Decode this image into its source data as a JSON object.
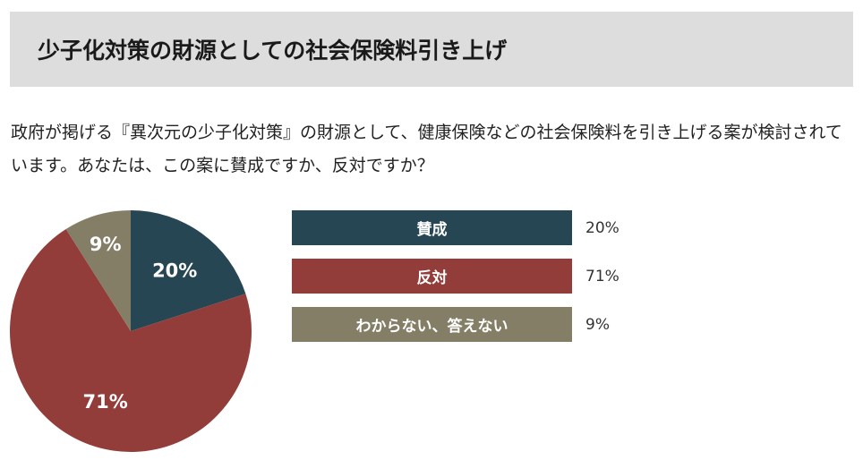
{
  "header": {
    "title": "少子化対策の財源としての社会保険料引き上げ"
  },
  "question": {
    "text": "政府が掲げる『異次元の少子化対策』の財源として、健康保険などの社会保険料を引き上げる案が検討されています。あなたは、この案に賛成ですか、反対ですか？"
  },
  "chart_data": {
    "type": "pie",
    "slices": [
      {
        "label": "賛成",
        "value": 20,
        "display": "20%",
        "color": "#264653"
      },
      {
        "label": "反対",
        "value": 71,
        "display": "71%",
        "color": "#933d3a"
      },
      {
        "label": "わからない、答えない",
        "value": 9,
        "display": "9%",
        "color": "#857e67"
      }
    ],
    "start_angle_deg": 0,
    "direction": "clockwise",
    "legend_position": "right"
  }
}
